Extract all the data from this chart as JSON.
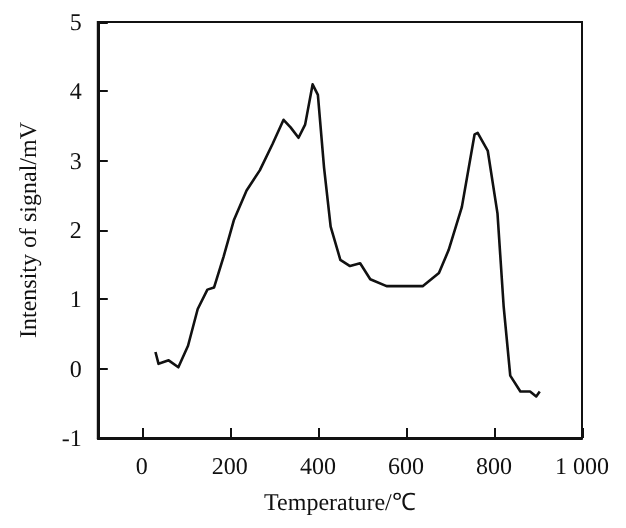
{
  "chart_data": {
    "type": "line",
    "xlabel": "Temperature/℃",
    "ylabel": "Intensity of signal/mV",
    "x": [
      31,
      38,
      61,
      83,
      105,
      127,
      149,
      164,
      186,
      209,
      238,
      268,
      297,
      322,
      338,
      356,
      371,
      388,
      400,
      414,
      429,
      451,
      473,
      496,
      519,
      556,
      593,
      638,
      675,
      697,
      727,
      756,
      763,
      786,
      808,
      822,
      837,
      860,
      882,
      896,
      904
    ],
    "series": [
      {
        "color": "#111111",
        "values": [
          0.24,
          0.07,
          0.12,
          0.02,
          0.33,
          0.86,
          1.14,
          1.17,
          1.62,
          2.14,
          2.57,
          2.86,
          3.24,
          3.59,
          3.48,
          3.33,
          3.52,
          4.1,
          3.95,
          2.9,
          2.05,
          1.57,
          1.48,
          1.52,
          1.29,
          1.19,
          1.19,
          1.19,
          1.38,
          1.71,
          2.33,
          3.38,
          3.4,
          3.14,
          2.24,
          0.9,
          -0.1,
          -0.33,
          -0.33,
          -0.4,
          -0.33
        ]
      }
    ],
    "xlim": [
      -100,
      1000
    ],
    "xticks": [
      0,
      200,
      400,
      600,
      800,
      {
        "value": 1000,
        "label": "1 000"
      }
    ],
    "ylim": [
      -1,
      5
    ],
    "yticks": [
      -1,
      0,
      1,
      2,
      3,
      4,
      5
    ],
    "grid": false,
    "marker": "none",
    "line_style": "solid"
  }
}
